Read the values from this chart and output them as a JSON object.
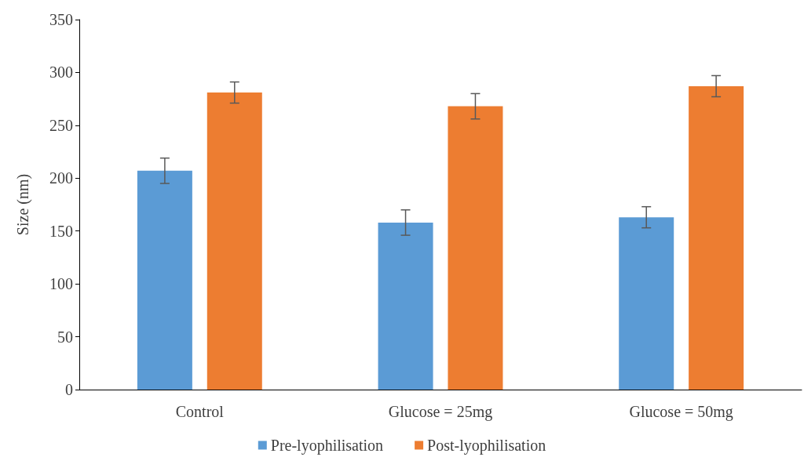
{
  "chart_data": {
    "type": "bar",
    "ylabel": "Size (nm)",
    "categories": [
      "Control",
      "Glucose = 25mg",
      "Glucose = 50mg"
    ],
    "series": [
      {
        "name": "Pre-lyophilisation",
        "color": "#5b9bd5",
        "values": [
          207,
          158,
          163
        ],
        "errors": [
          12,
          12,
          10
        ]
      },
      {
        "name": "Post-lyophilisation",
        "color": "#ed7d31",
        "values": [
          281,
          268,
          287
        ],
        "errors": [
          10,
          12,
          10
        ]
      }
    ],
    "ylim": [
      0,
      350
    ],
    "yticks": [
      0,
      50,
      100,
      150,
      200,
      250,
      300,
      350
    ],
    "grid": false,
    "legend": "bottom"
  }
}
